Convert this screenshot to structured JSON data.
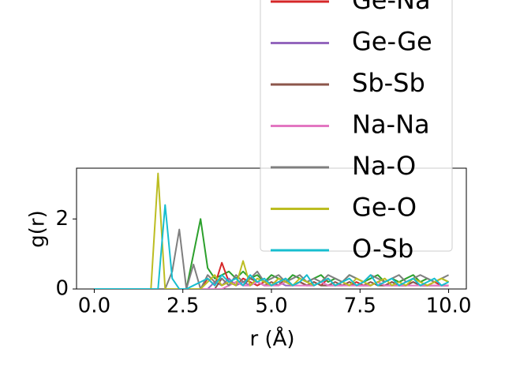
{
  "chart_data": {
    "type": "line",
    "x_label": "r (Å)",
    "y_label": "g(r)",
    "x": [
      0,
      0.2,
      0.4,
      0.6,
      0.8,
      1,
      1.2,
      1.4,
      1.6,
      1.8,
      2,
      2.2,
      2.4,
      2.6,
      2.8,
      3,
      3.2,
      3.4,
      3.6,
      3.8,
      4,
      4.2,
      4.4,
      4.6,
      4.8,
      5,
      5.2,
      5.4,
      5.6,
      5.8,
      6,
      6.2,
      6.4,
      6.6,
      6.8,
      7,
      7.2,
      7.4,
      7.6,
      7.8,
      8,
      8.2,
      8.4,
      8.6,
      8.8,
      9,
      9.2,
      9.4,
      9.6,
      9.8,
      10
    ],
    "xlim": [
      -0.5,
      10.5
    ],
    "xticks": [
      {
        "value": 0,
        "label": "0.0"
      },
      {
        "value": 2.5,
        "label": "2.5"
      },
      {
        "value": 5,
        "label": "5.0"
      },
      {
        "value": 7.5,
        "label": "7.5"
      },
      {
        "value": 10,
        "label": "10.0"
      }
    ],
    "ylim": [
      0,
      3.45
    ],
    "yticks": [
      0,
      2
    ],
    "legend": "upper right",
    "series": [
      {
        "color": "#2ca02c",
        "values": [
          0,
          0,
          0,
          0,
          0,
          0,
          0,
          0,
          0,
          0,
          0,
          0,
          0,
          0,
          1.0,
          2.0,
          0.6,
          0.3,
          0.4,
          0.5,
          0.3,
          0.5,
          0.3,
          0.4,
          0.2,
          0.4,
          0.3,
          0.2,
          0.4,
          0.3,
          0.2,
          0.3,
          0.4,
          0.2,
          0.3,
          0.2,
          0.4,
          0.3,
          0.2,
          0.3,
          0.4,
          0.2,
          0.3,
          0.2,
          0.3,
          0.4,
          0.2,
          0.3,
          0.2,
          0.3,
          0.2
        ]
      },
      {
        "name": "Ge-Na",
        "color": "#d62728",
        "values": [
          0,
          0,
          0,
          0,
          0,
          0,
          0,
          0,
          0,
          0,
          0,
          0,
          0,
          0,
          0,
          0,
          0.3,
          0.1,
          0.75,
          0.2,
          0.1,
          0.3,
          0.2,
          0.1,
          0.2,
          0.1,
          0.3,
          0.2,
          0.1,
          0.2,
          0.1,
          0.2,
          0.1,
          0.3,
          0.1,
          0.2,
          0.1,
          0.2,
          0.1,
          0.1,
          0.2,
          0.1,
          0.2,
          0.1,
          0.1,
          0.2,
          0.1,
          0.1,
          0.2,
          0.1,
          0.1
        ]
      },
      {
        "name": "Ge-Ge",
        "color": "#9467bd",
        "values": [
          0,
          0,
          0,
          0,
          0,
          0,
          0,
          0,
          0,
          0,
          0,
          0,
          0,
          0,
          0,
          0,
          0,
          0.2,
          0.1,
          0.3,
          0.1,
          0.2,
          0.1,
          0.2,
          0.1,
          0.1,
          0.2,
          0.1,
          0.1,
          0.2,
          0.1,
          0.1,
          0.2,
          0.1,
          0.1,
          0.1,
          0.2,
          0.1,
          0.1,
          0.1,
          0.2,
          0.1,
          0.1,
          0.1,
          0.1,
          0.2,
          0.1,
          0.1,
          0.1,
          0.1,
          0.1
        ]
      },
      {
        "name": "Sb-Sb",
        "color": "#8c564b",
        "values": [
          0,
          0,
          0,
          0,
          0,
          0,
          0,
          0,
          0,
          0,
          0,
          0,
          0,
          0,
          0,
          0,
          0,
          0,
          0.3,
          0.1,
          0.2,
          0.1,
          0.3,
          0.2,
          0.1,
          0.2,
          0.1,
          0.3,
          0.1,
          0.2,
          0.1,
          0.2,
          0.1,
          0.1,
          0.2,
          0.1,
          0.2,
          0.1,
          0.1,
          0.2,
          0.1,
          0.1,
          0.2,
          0.1,
          0.1,
          0.2,
          0.1,
          0.1,
          0.1,
          0.1,
          0.1
        ]
      },
      {
        "name": "Na-Na",
        "color": "#e377c2",
        "values": [
          0,
          0,
          0,
          0,
          0,
          0,
          0,
          0,
          0,
          0,
          0,
          0,
          0,
          0,
          0,
          0,
          0,
          0,
          0,
          0.1,
          0.2,
          0.1,
          0.1,
          0.2,
          0.1,
          0.1,
          0.1,
          0.2,
          0.1,
          0.1,
          0.1,
          0.1,
          0.2,
          0.1,
          0.1,
          0.1,
          0.1,
          0.1,
          0.1,
          0.1,
          0.2,
          0.1,
          0.1,
          0.1,
          0.1,
          0.1,
          0.1,
          0.1,
          0.1,
          0.1,
          0.1
        ]
      },
      {
        "name": "Na-O",
        "color": "#7f7f7f",
        "values": [
          0,
          0,
          0,
          0,
          0,
          0,
          0,
          0,
          0,
          0,
          0,
          0.5,
          1.7,
          0,
          0.7,
          0,
          0.4,
          0.2,
          0.3,
          0.1,
          0.4,
          0.2,
          0.3,
          0.5,
          0.2,
          0.3,
          0.4,
          0.2,
          0.3,
          0.4,
          0.2,
          0.3,
          0.2,
          0.4,
          0.3,
          0.2,
          0.4,
          0.3,
          0.2,
          0.4,
          0.3,
          0.2,
          0.3,
          0.4,
          0.2,
          0.3,
          0.4,
          0.3,
          0.2,
          0.3,
          0.4
        ]
      },
      {
        "name": "Ge-O",
        "color": "#bcbd22",
        "values": [
          0,
          0,
          0,
          0,
          0,
          0,
          0,
          0,
          0,
          3.3,
          0,
          0,
          0,
          0,
          0,
          0,
          0.2,
          0.4,
          0.1,
          0.2,
          0.1,
          0.8,
          0.1,
          0.3,
          0.2,
          0.1,
          0.3,
          0.2,
          0.1,
          0.3,
          0.2,
          0.1,
          0.2,
          0.3,
          0.1,
          0.2,
          0.1,
          0.3,
          0.2,
          0.1,
          0.2,
          0.3,
          0.1,
          0.2,
          0.1,
          0.3,
          0.2,
          0.1,
          0.2,
          0.3,
          0.2
        ]
      },
      {
        "name": "O-Sb",
        "color": "#17becf",
        "values": [
          0,
          0,
          0,
          0,
          0,
          0,
          0,
          0,
          0,
          0,
          2.4,
          0.3,
          0,
          0,
          0.1,
          0.2,
          0.3,
          0.1,
          0.4,
          0.2,
          0.3,
          0.1,
          0.4,
          0.2,
          0.3,
          0.1,
          0.2,
          0.3,
          0.1,
          0.2,
          0.4,
          0.1,
          0.2,
          0.3,
          0.1,
          0.2,
          0.3,
          0.1,
          0.2,
          0.4,
          0.1,
          0.2,
          0.3,
          0.1,
          0.2,
          0.3,
          0.1,
          0.2,
          0.3,
          0.1,
          0.2
        ]
      }
    ]
  }
}
